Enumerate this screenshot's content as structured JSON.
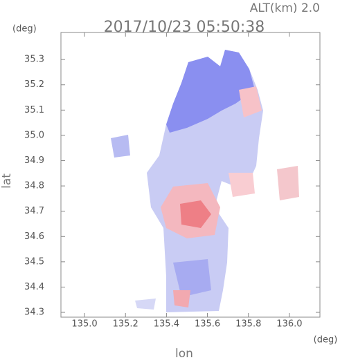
{
  "chart_data": {
    "type": "map",
    "title": "2017/10/23 05:50:38",
    "annotation": "ALT(km) 2.0",
    "xlabel": "lon",
    "ylabel": "lat",
    "x_unit": "(deg)",
    "y_unit": "(deg)",
    "xlim": [
      134.885,
      136.149
    ],
    "ylim": [
      34.281,
      35.407
    ],
    "xticks": [
      {
        "value": 135,
        "label": "135.0"
      },
      135.2,
      135.4,
      135.6,
      135.8,
      {
        "value": 136,
        "label": "136.0"
      }
    ],
    "yticks": [
      34.3,
      34.4,
      34.5,
      34.6,
      34.7,
      34.8,
      34.9,
      {
        "value": 35,
        "label": "35.0"
      },
      35.1,
      35.2,
      35.3
    ],
    "grid": false
  }
}
